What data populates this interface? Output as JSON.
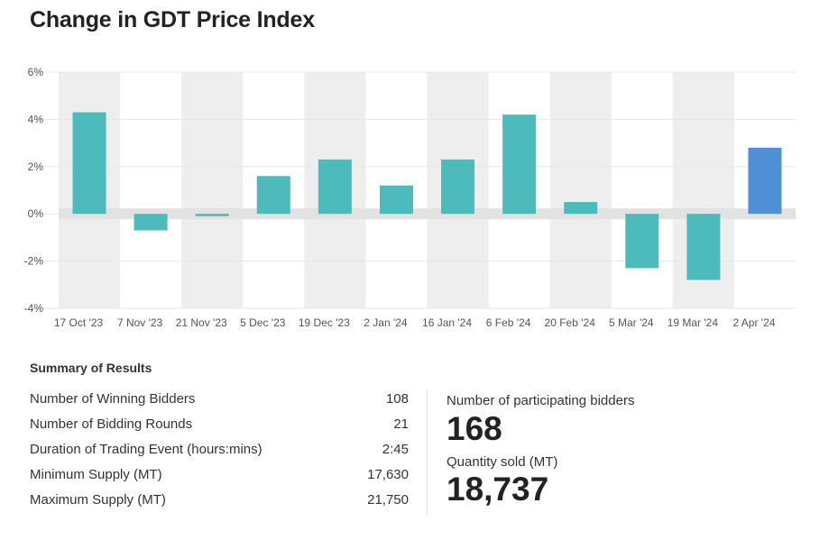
{
  "title": "Change in GDT Price Index",
  "chart_data": {
    "type": "bar",
    "categories": [
      "17 Oct '23",
      "7 Nov '23",
      "21 Nov '23",
      "5 Dec '23",
      "19 Dec '23",
      "2 Jan '24",
      "16 Jan '24",
      "6 Feb '24",
      "20 Feb '24",
      "5 Mar '24",
      "19 Mar '24",
      "2 Apr '24"
    ],
    "values": [
      4.3,
      -0.7,
      -0.1,
      1.6,
      2.3,
      1.2,
      2.3,
      4.2,
      0.5,
      -2.3,
      -2.8,
      2.8
    ],
    "ylim": [
      -4,
      6
    ],
    "yticks": [
      "6%",
      "4%",
      "2%",
      "0%",
      "-2%",
      "-4%"
    ],
    "ytick_values": [
      6,
      4,
      2,
      0,
      -2,
      -4
    ],
    "xlabel": "",
    "ylabel": "",
    "colors": {
      "default": "#4dbbbb",
      "highlight": "#4f8fd6",
      "stripe": "#eeeeee",
      "zero_band": "#e2e2e2"
    },
    "highlight_index": 11,
    "grid": true
  },
  "summary": {
    "heading": "Summary of Results",
    "rows": [
      {
        "label": "Number of Winning Bidders",
        "value": "108"
      },
      {
        "label": "Number of Bidding Rounds",
        "value": "21"
      },
      {
        "label": "Duration of Trading Event (hours:mins)",
        "value": "2:45"
      },
      {
        "label": "Minimum Supply (MT)",
        "value": "17,630"
      },
      {
        "label": "Maximum Supply (MT)",
        "value": "21,750"
      }
    ],
    "participants_label": "Number of participating bidders",
    "participants_value": "168",
    "quantity_label": "Quantity sold (MT)",
    "quantity_value": "18,737"
  }
}
